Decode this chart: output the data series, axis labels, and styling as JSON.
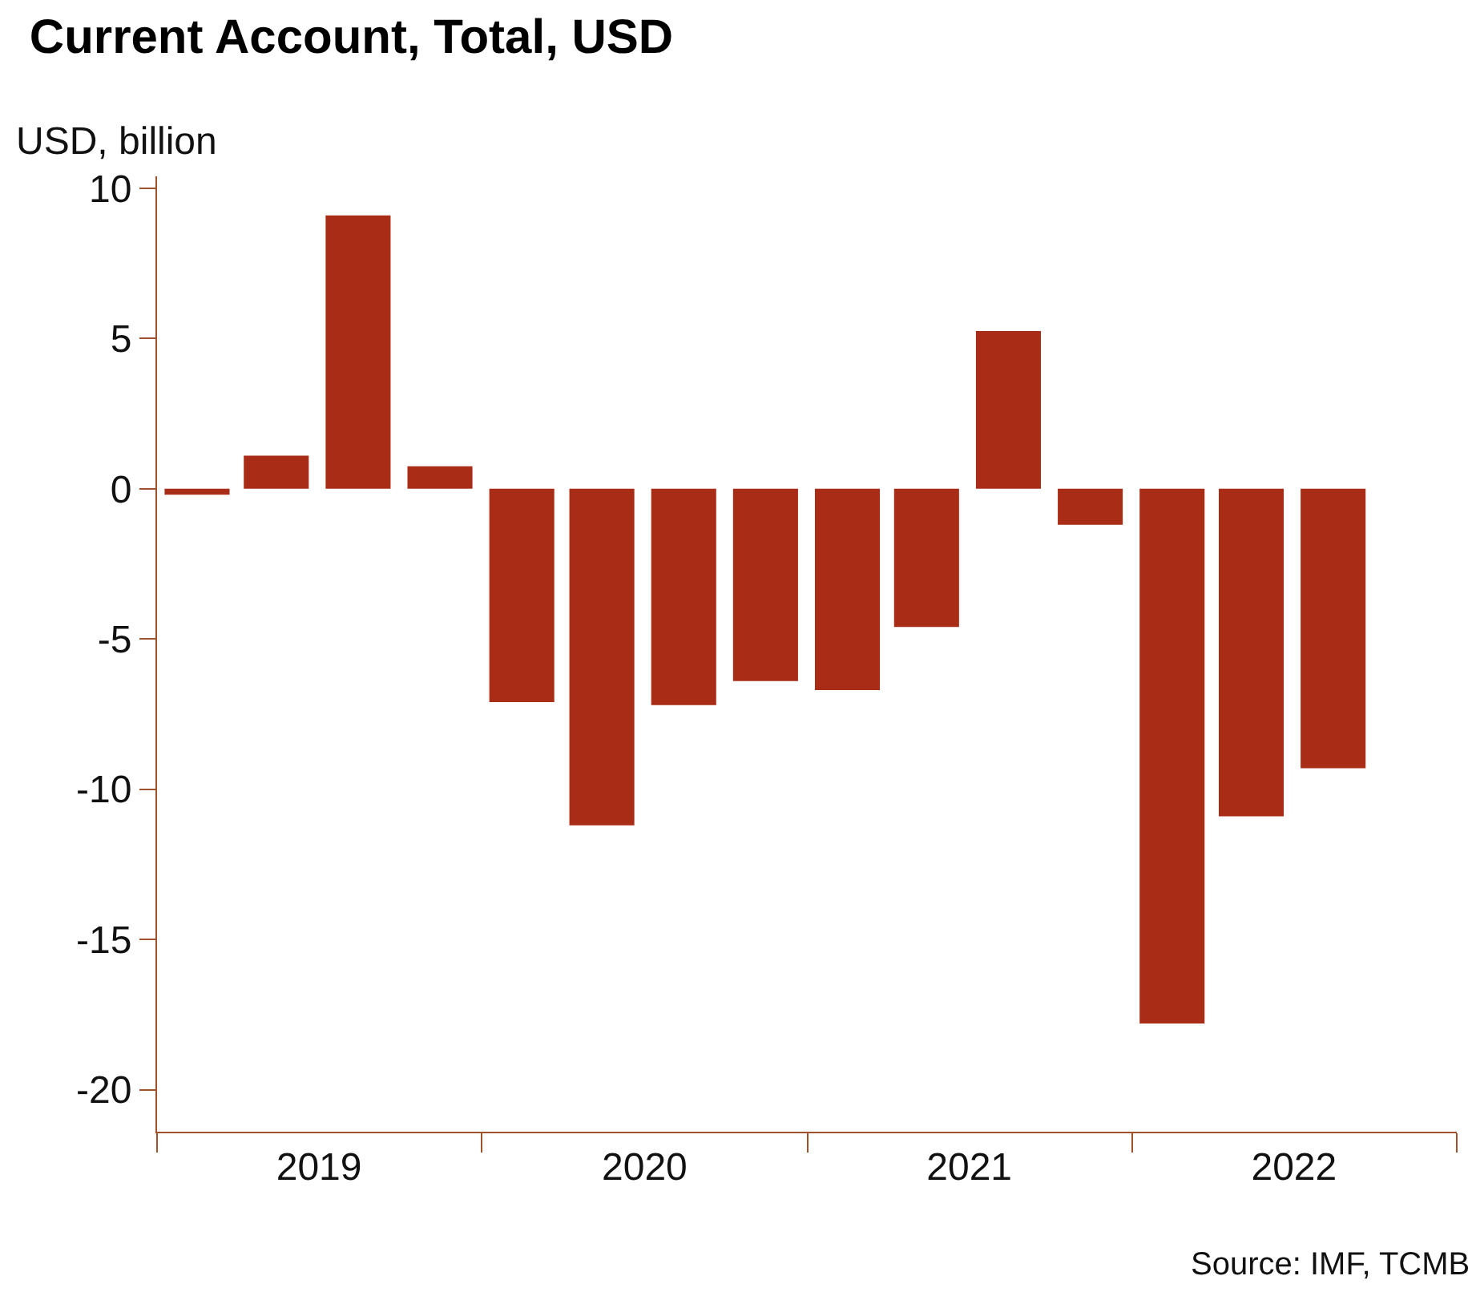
{
  "chart_data": {
    "type": "bar",
    "title": "Current Account, Total, USD",
    "ylabel": "USD, billion",
    "x": [
      "2019-02-15",
      "2019-05-15",
      "2019-08-15",
      "2019-11-15",
      "2020-02-15",
      "2020-05-15",
      "2020-08-15",
      "2020-11-15",
      "2021-02-15",
      "2021-05-15",
      "2021-08-15",
      "2021-11-15",
      "2022-02-15",
      "2022-05-15",
      "2022-08-15"
    ],
    "values": [
      -0.2,
      1.1,
      9.1,
      0.75,
      -7.1,
      -11.2,
      -7.2,
      -6.4,
      -6.7,
      -4.6,
      5.25,
      -1.2,
      -17.8,
      -10.9,
      -9.3
    ],
    "color": "#a82c16",
    "xlim": [
      "2019-01-01",
      "2023-01-01"
    ],
    "xticks": [
      {
        "value": "2019-01-01",
        "label": null
      },
      {
        "value": "2019-07-02",
        "label": "2019"
      },
      {
        "value": "2020-01-01",
        "label": null
      },
      {
        "value": "2020-07-02",
        "label": "2020"
      },
      {
        "value": "2021-01-01",
        "label": null
      },
      {
        "value": "2021-07-02",
        "label": "2021"
      },
      {
        "value": "2022-01-01",
        "label": null
      },
      {
        "value": "2022-07-02",
        "label": "2022"
      },
      {
        "value": "2023-01-01",
        "label": null
      }
    ],
    "ylim": [
      -21.4,
      10.4
    ],
    "yticks": [
      -20,
      -15,
      -10,
      -5,
      0,
      5,
      10
    ],
    "annotations": [
      "Source: IMF, TCMB"
    ]
  }
}
